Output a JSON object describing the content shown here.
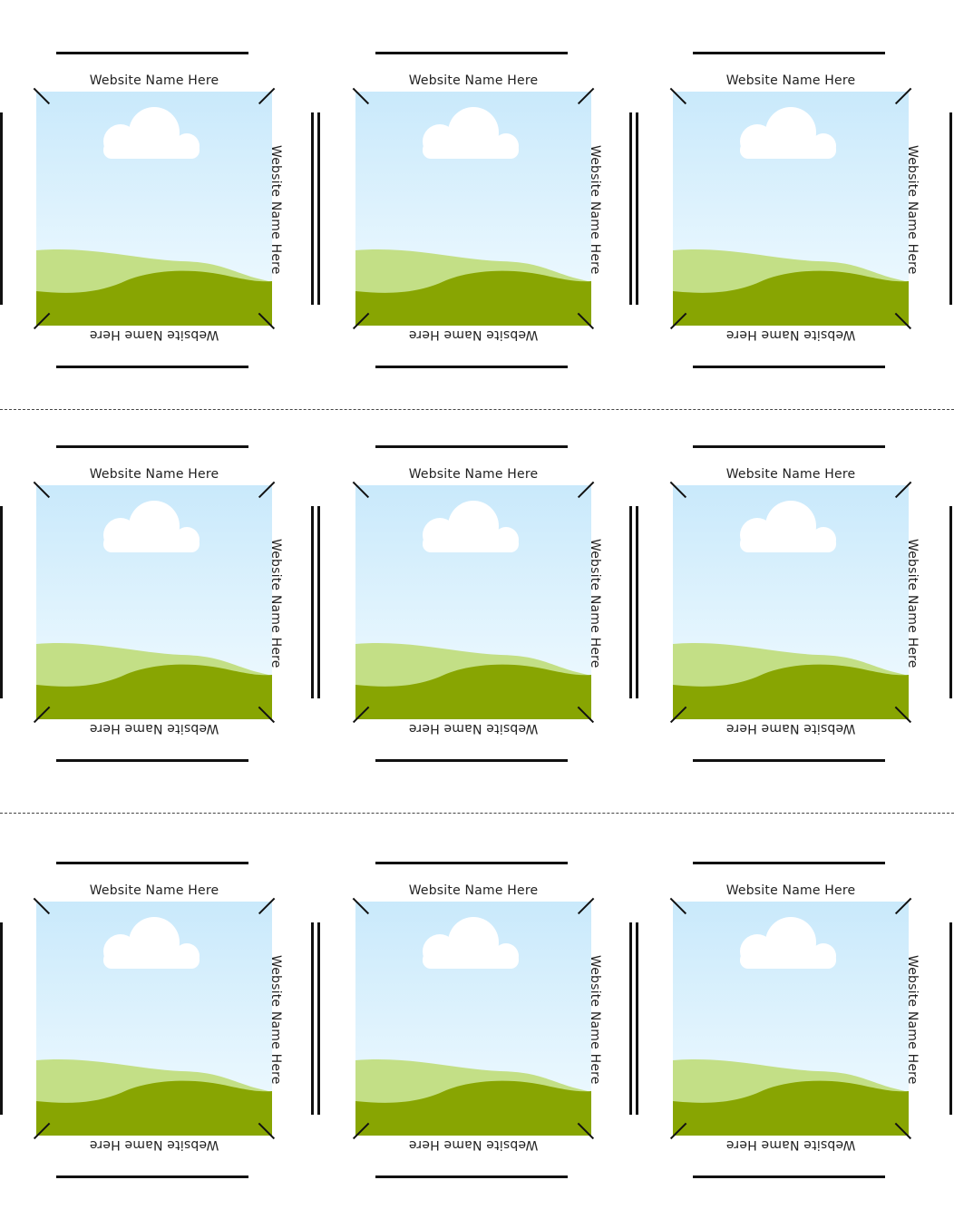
{
  "card_label": "Website Name Here",
  "colors": {
    "sky_top": "#c9e9fb",
    "sky_bottom": "#f2fbff",
    "hill_light": "#c3df86",
    "hill_dark": "#88a502",
    "cloud": "#ffffff"
  },
  "grid": {
    "rows": 3,
    "columns": 3
  }
}
